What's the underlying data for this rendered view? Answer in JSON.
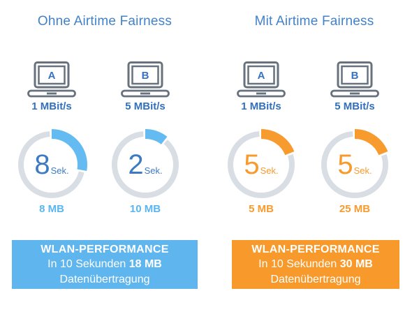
{
  "panels": [
    {
      "title": "Ohne Airtime Fairness",
      "theme": {
        "arc": "#63bbf2",
        "number": "#3d7ac4",
        "label": "#5ab6f0",
        "box_bg": "#5fb5ee"
      },
      "devices": [
        {
          "name": "A",
          "speed": "1 MBit/s",
          "duration_value": "8",
          "duration_unit": "Sek.",
          "arc_deg": 100,
          "transferred": "8 MB"
        },
        {
          "name": "B",
          "speed": "5 MBit/s",
          "duration_value": "2",
          "duration_unit": "Sek.",
          "arc_deg": 38,
          "transferred": "10 MB"
        }
      ],
      "summary": {
        "heading": "WLAN-PERFORMANCE",
        "line2_prefix": "In 10 Sekunden ",
        "line2_bold": "18 MB",
        "line3": "Datenübertragung"
      }
    },
    {
      "title": "Mit Airtime Fairness",
      "theme": {
        "arc": "#f89b2e",
        "number": "#f89b2e",
        "label": "#f89b2e",
        "box_bg": "#f8992b"
      },
      "devices": [
        {
          "name": "A",
          "speed": "1 MBit/s",
          "duration_value": "5",
          "duration_unit": "Sek.",
          "arc_deg": 68,
          "transferred": "5 MB"
        },
        {
          "name": "B",
          "speed": "5 MBit/s",
          "duration_value": "5",
          "duration_unit": "Sek.",
          "arc_deg": 68,
          "transferred": "25 MB"
        }
      ],
      "summary": {
        "heading": "WLAN-PERFORMANCE",
        "line2_prefix": "In 10 Sekunden ",
        "line2_bold": "30 MB",
        "line3": "Datenübertragung"
      }
    }
  ],
  "shared_colors": {
    "title_blue": "#4282ca",
    "strong_blue": "#3270bd",
    "ring_gray": "#d9dee5",
    "laptop_gray": "#67727e",
    "background": "#ffffff",
    "box_text": "#ffffff"
  }
}
